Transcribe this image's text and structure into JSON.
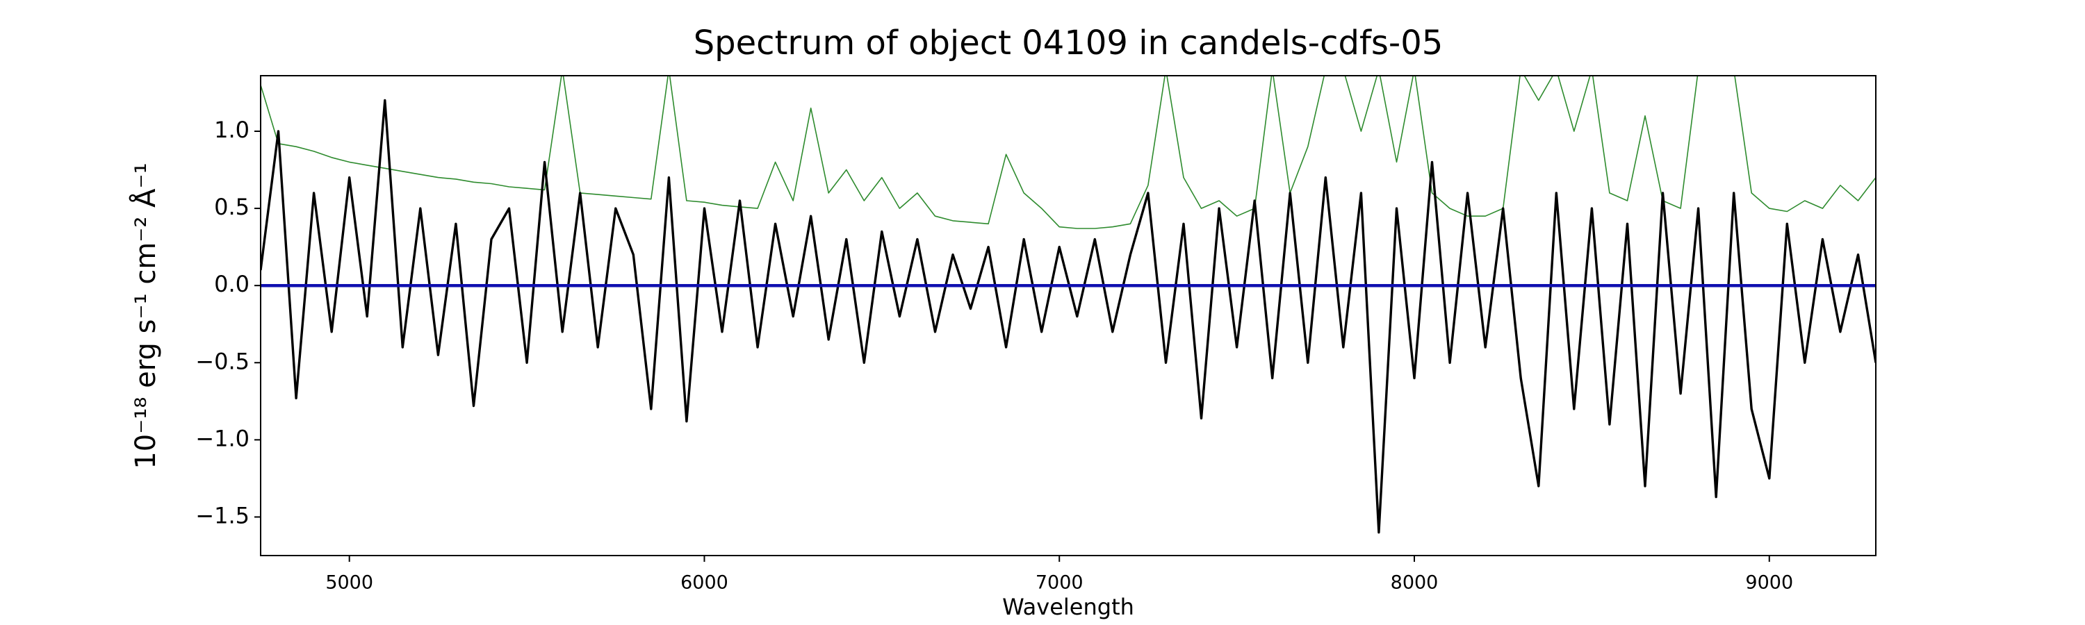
{
  "chart_data": {
    "type": "line",
    "title": "Spectrum of object 04109 in candels-cdfs-05",
    "xlabel": "Wavelength",
    "ylabel": "10⁻¹⁸ erg s⁻¹ cm⁻² Å⁻¹",
    "x": [
      4750,
      4800,
      4850,
      4900,
      4950,
      5000,
      5050,
      5100,
      5150,
      5200,
      5250,
      5300,
      5350,
      5400,
      5450,
      5500,
      5550,
      5600,
      5650,
      5700,
      5750,
      5800,
      5850,
      5900,
      5950,
      6000,
      6050,
      6100,
      6150,
      6200,
      6250,
      6300,
      6350,
      6400,
      6450,
      6500,
      6550,
      6600,
      6650,
      6700,
      6750,
      6800,
      6850,
      6900,
      6950,
      7000,
      7050,
      7100,
      7150,
      7200,
      7250,
      7300,
      7350,
      7400,
      7450,
      7500,
      7550,
      7600,
      7650,
      7700,
      7750,
      7800,
      7850,
      7900,
      7950,
      8000,
      8050,
      8100,
      8150,
      8200,
      8250,
      8300,
      8350,
      8400,
      8450,
      8500,
      8550,
      8600,
      8650,
      8700,
      8750,
      8800,
      8850,
      8900,
      8950,
      9000,
      9050,
      9100,
      9150,
      9200,
      9250,
      9300
    ],
    "series": [
      {
        "color": "#2e8b2e",
        "values": [
          1.3,
          0.92,
          0.9,
          0.87,
          0.83,
          0.8,
          0.78,
          0.76,
          0.74,
          0.72,
          0.7,
          0.69,
          0.67,
          0.66,
          0.64,
          0.63,
          0.62,
          1.4,
          0.6,
          0.59,
          0.58,
          0.57,
          0.56,
          1.4,
          0.55,
          0.54,
          0.52,
          0.51,
          0.5,
          0.8,
          0.55,
          1.15,
          0.6,
          0.75,
          0.55,
          0.7,
          0.5,
          0.6,
          0.45,
          0.42,
          0.41,
          0.4,
          0.85,
          0.6,
          0.5,
          0.38,
          0.37,
          0.37,
          0.38,
          0.4,
          0.65,
          1.4,
          0.7,
          0.5,
          0.55,
          0.45,
          0.5,
          1.4,
          0.6,
          0.9,
          1.4,
          1.4,
          1.0,
          1.4,
          0.8,
          1.4,
          0.6,
          0.5,
          0.45,
          0.45,
          0.5,
          1.4,
          1.2,
          1.4,
          1.0,
          1.4,
          0.6,
          0.55,
          1.1,
          0.55,
          0.5,
          1.4,
          1.4,
          1.4,
          0.6,
          0.5,
          0.48,
          0.55,
          0.5,
          0.65,
          0.55,
          0.7
        ]
      },
      {
        "color": "#000000",
        "values": [
          0.1,
          1.0,
          -0.73,
          0.6,
          -0.3,
          0.7,
          -0.2,
          1.2,
          -0.4,
          0.5,
          -0.45,
          0.4,
          -0.78,
          0.3,
          0.5,
          -0.5,
          0.8,
          -0.3,
          0.6,
          -0.4,
          0.5,
          0.2,
          -0.8,
          0.7,
          -0.88,
          0.5,
          -0.3,
          0.55,
          -0.4,
          0.4,
          -0.2,
          0.45,
          -0.35,
          0.3,
          -0.5,
          0.35,
          -0.2,
          0.3,
          -0.3,
          0.2,
          -0.15,
          0.25,
          -0.4,
          0.3,
          -0.3,
          0.25,
          -0.2,
          0.3,
          -0.3,
          0.2,
          0.6,
          -0.5,
          0.4,
          -0.86,
          0.5,
          -0.4,
          0.55,
          -0.6,
          0.6,
          -0.5,
          0.7,
          -0.4,
          0.6,
          -1.6,
          0.5,
          -0.6,
          0.8,
          -0.5,
          0.6,
          -0.4,
          0.5,
          -0.6,
          -1.3,
          0.6,
          -0.8,
          0.5,
          -0.9,
          0.4,
          -1.3,
          0.6,
          -0.7,
          0.5,
          -1.37,
          0.6,
          -0.8,
          -1.25,
          0.4,
          -0.5,
          0.3,
          -0.3,
          0.2,
          -0.5
        ]
      },
      {
        "color": "#1010b0",
        "values": [
          0,
          0,
          0,
          0,
          0,
          0,
          0,
          0,
          0,
          0,
          0,
          0,
          0,
          0,
          0,
          0,
          0,
          0,
          0,
          0,
          0,
          0,
          0,
          0,
          0,
          0,
          0,
          0,
          0,
          0,
          0,
          0,
          0,
          0,
          0,
          0,
          0,
          0,
          0,
          0,
          0,
          0,
          0,
          0,
          0,
          0,
          0,
          0,
          0,
          0,
          0,
          0,
          0,
          0,
          0,
          0,
          0,
          0,
          0,
          0,
          0,
          0,
          0,
          0,
          0,
          0,
          0,
          0,
          0,
          0,
          0,
          0,
          0,
          0,
          0,
          0,
          0,
          0,
          0,
          0,
          0,
          0,
          0,
          0,
          0,
          0,
          0,
          0,
          0,
          0,
          0,
          0
        ]
      }
    ],
    "xlim": [
      4750,
      9300
    ],
    "ylim": [
      -1.75,
      1.36
    ],
    "xticks": [
      5000,
      6000,
      7000,
      8000,
      9000
    ],
    "yticks": [
      {
        "value": -1.5,
        "label": "−1.5"
      },
      {
        "value": -1.0,
        "label": "−1.0"
      },
      {
        "value": -0.5,
        "label": "−0.5"
      },
      {
        "value": 0,
        "label": "0.0"
      },
      {
        "value": 0.5,
        "label": "0.5"
      },
      {
        "value": 1.0,
        "label": "1.0"
      }
    ],
    "grid": false
  }
}
